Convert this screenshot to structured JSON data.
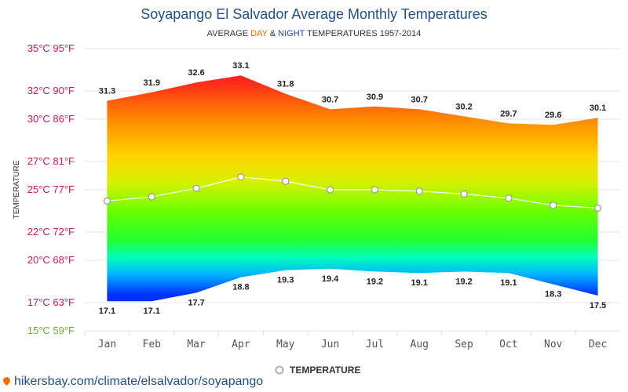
{
  "chart_data": {
    "type": "area",
    "title": "Soyapango El Salvador Average Monthly Temperatures",
    "subtitle": {
      "prefix": "AVERAGE ",
      "day": "DAY",
      "amp": " & ",
      "night": "NIGHT",
      "suffix": " TEMPERATURES 1957-2014"
    },
    "ylabel": "TEMPERATURE",
    "categories": [
      "Jan",
      "Feb",
      "Mar",
      "Apr",
      "May",
      "Jun",
      "Jul",
      "Aug",
      "Sep",
      "Oct",
      "Nov",
      "Dec"
    ],
    "series": [
      {
        "name": "DAY",
        "values": [
          31.3,
          31.9,
          32.6,
          33.1,
          31.8,
          30.7,
          30.9,
          30.7,
          30.2,
          29.7,
          29.6,
          30.1
        ]
      },
      {
        "name": "NIGHT",
        "values": [
          17.1,
          17.1,
          17.7,
          18.8,
          19.3,
          19.4,
          19.2,
          19.1,
          19.2,
          19.1,
          18.3,
          17.5
        ]
      },
      {
        "name": "TEMPERATURE",
        "values": [
          24.2,
          24.5,
          25.1,
          25.9,
          25.6,
          25.0,
          25.0,
          24.9,
          24.7,
          24.4,
          23.9,
          23.7
        ]
      }
    ],
    "yticks": [
      {
        "value": 15,
        "label": "15°C 59°F",
        "color": "#66b032"
      },
      {
        "value": 17,
        "label": "17°C 63°F",
        "color": "#d4145a"
      },
      {
        "value": 20,
        "label": "20°C 68°F",
        "color": "#d4145a"
      },
      {
        "value": 22,
        "label": "22°C 72°F",
        "color": "#d4145a"
      },
      {
        "value": 25,
        "label": "25°C 77°F",
        "color": "#d4145a"
      },
      {
        "value": 27,
        "label": "27°C 81°F",
        "color": "#d4145a"
      },
      {
        "value": 30,
        "label": "30°C 86°F",
        "color": "#d4145a"
      },
      {
        "value": 32,
        "label": "32°C 90°F",
        "color": "#d4145a"
      },
      {
        "value": 35,
        "label": "35°C 95°F",
        "color": "#d4145a"
      }
    ],
    "ylim": [
      15,
      35
    ],
    "grid": true,
    "legend": {
      "label": "TEMPERATURE",
      "placement": "bottom-center"
    },
    "colors": {
      "day": "#ff6600",
      "night": "#1f3fbf",
      "title": "#1f4e8c"
    }
  },
  "footer": {
    "source": "hikersbay.com/climate/elsalvador/soyapango"
  }
}
